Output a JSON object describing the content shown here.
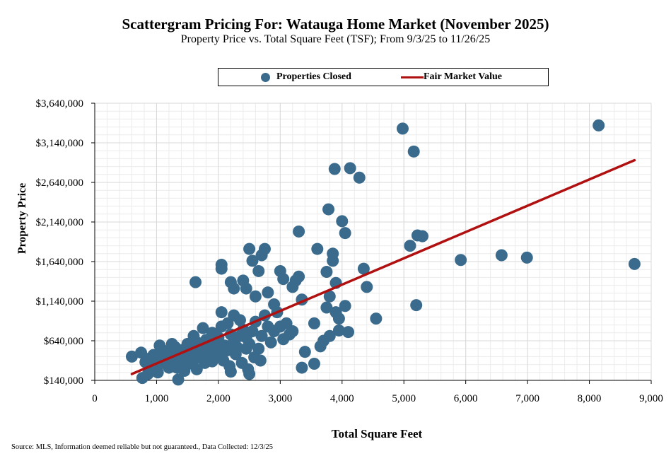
{
  "chart_data": {
    "type": "scatter",
    "title": "Scattergram Pricing For: Watauga Home Market (November 2025)",
    "subtitle": "Property Price vs. Total Square Feet (TSF); From 9/3/25 to 11/26/25",
    "xlabel": "Total Square Feet",
    "ylabel": "Property Price",
    "xlim": [
      0,
      9000
    ],
    "ylim": [
      140000,
      3640000
    ],
    "x_ticks": [
      0,
      1000,
      2000,
      3000,
      4000,
      5000,
      6000,
      7000,
      8000,
      9000
    ],
    "x_tick_labels": [
      "0",
      "1,000",
      "2,000",
      "3,000",
      "4,000",
      "5,000",
      "6,000",
      "7,000",
      "8,000",
      "9,000"
    ],
    "y_ticks": [
      140000,
      640000,
      1140000,
      1640000,
      2140000,
      2640000,
      3140000,
      3640000
    ],
    "y_tick_labels": [
      "$140,000",
      "$640,000",
      "$1,140,000",
      "$1,640,000",
      "$2,140,000",
      "$2,640,000",
      "$3,140,000",
      "$3,640,000"
    ],
    "grid": true,
    "legend_position": "top-center",
    "colors": {
      "points": "#3a6a8c",
      "trend": "#b01010",
      "grid": "#d9d9d9"
    },
    "series": [
      {
        "name": "Properties Closed",
        "type": "scatter",
        "points": [
          [
            600,
            440000
          ],
          [
            750,
            490000
          ],
          [
            820,
            370000
          ],
          [
            900,
            420000
          ],
          [
            950,
            460000
          ],
          [
            1000,
            400000
          ],
          [
            1050,
            580000
          ],
          [
            1100,
            500000
          ],
          [
            1150,
            460000
          ],
          [
            1200,
            520000
          ],
          [
            1250,
            420000
          ],
          [
            1300,
            560000
          ],
          [
            1350,
            480000
          ],
          [
            1400,
            520000
          ],
          [
            1450,
            450000
          ],
          [
            1500,
            600000
          ],
          [
            1550,
            540000
          ],
          [
            1600,
            700000
          ],
          [
            1650,
            620000
          ],
          [
            1700,
            560000
          ],
          [
            1750,
            800000
          ],
          [
            1800,
            650000
          ],
          [
            1850,
            520000
          ],
          [
            1900,
            740000
          ],
          [
            1950,
            600000
          ],
          [
            2000,
            680000
          ],
          [
            2050,
            1000000
          ],
          [
            2100,
            580000
          ],
          [
            2150,
            860000
          ],
          [
            2200,
            720000
          ],
          [
            2250,
            960000
          ],
          [
            2300,
            560000
          ],
          [
            2350,
            900000
          ],
          [
            2400,
            780000
          ],
          [
            2450,
            680000
          ],
          [
            2500,
            600000
          ],
          [
            2550,
            760000
          ],
          [
            2600,
            880000
          ],
          [
            2650,
            540000
          ],
          [
            2700,
            700000
          ],
          [
            2750,
            960000
          ],
          [
            2800,
            820000
          ],
          [
            2850,
            620000
          ],
          [
            2900,
            760000
          ],
          [
            2950,
            1000000
          ],
          [
            3000,
            820000
          ],
          [
            3050,
            660000
          ],
          [
            3100,
            860000
          ],
          [
            3150,
            720000
          ],
          [
            3200,
            760000
          ],
          [
            950,
            340000
          ],
          [
            1120,
            360000
          ],
          [
            1250,
            600000
          ],
          [
            1330,
            300000
          ],
          [
            1480,
            330000
          ],
          [
            1580,
            390000
          ],
          [
            1680,
            430000
          ],
          [
            1780,
            360000
          ],
          [
            1880,
            420000
          ],
          [
            1980,
            480000
          ],
          [
            2080,
            390000
          ],
          [
            2180,
            320000
          ],
          [
            2280,
            470000
          ],
          [
            2380,
            360000
          ],
          [
            2480,
            280000
          ],
          [
            2580,
            430000
          ],
          [
            2680,
            390000
          ],
          [
            1100,
            440000
          ],
          [
            1350,
            400000
          ],
          [
            1600,
            460000
          ],
          [
            1800,
            480000
          ],
          [
            2000,
            440000
          ],
          [
            2150,
            520000
          ],
          [
            1900,
            380000
          ],
          [
            1700,
            520000
          ],
          [
            2250,
            640000
          ],
          [
            2350,
            700000
          ],
          [
            2050,
            820000
          ],
          [
            2450,
            540000
          ],
          [
            1950,
            540000
          ],
          [
            770,
            170000
          ],
          [
            1350,
            150000
          ],
          [
            860,
            220000
          ],
          [
            1020,
            240000
          ],
          [
            1200,
            300000
          ],
          [
            1450,
            260000
          ],
          [
            1650,
            280000
          ],
          [
            2200,
            250000
          ],
          [
            2500,
            220000
          ],
          [
            3350,
            300000
          ],
          [
            3550,
            350000
          ],
          [
            3400,
            500000
          ],
          [
            3700,
            640000
          ],
          [
            3650,
            570000
          ],
          [
            3900,
            1000000
          ],
          [
            3950,
            920000
          ],
          [
            3800,
            700000
          ],
          [
            4100,
            750000
          ],
          [
            3950,
            770000
          ],
          [
            3750,
            1060000
          ],
          [
            4050,
            1080000
          ],
          [
            3300,
            1450000
          ],
          [
            3350,
            1160000
          ],
          [
            3550,
            860000
          ],
          [
            3000,
            1520000
          ],
          [
            3050,
            1420000
          ],
          [
            3200,
            1320000
          ],
          [
            3250,
            1400000
          ],
          [
            2550,
            1650000
          ],
          [
            2700,
            1720000
          ],
          [
            2750,
            1800000
          ],
          [
            2500,
            1800000
          ],
          [
            2650,
            1520000
          ],
          [
            2400,
            1400000
          ],
          [
            2450,
            1300000
          ],
          [
            2200,
            1380000
          ],
          [
            2250,
            1300000
          ],
          [
            2050,
            1550000
          ],
          [
            2050,
            1600000
          ],
          [
            1630,
            1380000
          ],
          [
            3300,
            2020000
          ],
          [
            3600,
            1800000
          ],
          [
            3800,
            1200000
          ],
          [
            3850,
            1740000
          ],
          [
            3850,
            1650000
          ],
          [
            3900,
            1370000
          ],
          [
            3750,
            1510000
          ],
          [
            4000,
            2150000
          ],
          [
            4050,
            2000000
          ],
          [
            3780,
            2300000
          ],
          [
            4350,
            1550000
          ],
          [
            4400,
            1320000
          ],
          [
            4550,
            920000
          ],
          [
            3880,
            2810000
          ],
          [
            4130,
            2820000
          ],
          [
            4280,
            2700000
          ],
          [
            4980,
            3320000
          ],
          [
            5160,
            3030000
          ],
          [
            5100,
            1840000
          ],
          [
            5220,
            1970000
          ],
          [
            5300,
            1960000
          ],
          [
            5200,
            1090000
          ],
          [
            5920,
            1660000
          ],
          [
            6580,
            1720000
          ],
          [
            6990,
            1690000
          ],
          [
            8150,
            3360000
          ],
          [
            8730,
            1610000
          ],
          [
            2800,
            1250000
          ],
          [
            2600,
            1200000
          ],
          [
            2900,
            1100000
          ]
        ]
      },
      {
        "name": "Fair Market Value",
        "type": "line",
        "points": [
          [
            600,
            220000
          ],
          [
            8730,
            2920000
          ]
        ]
      }
    ]
  },
  "source_note": "Source: MLS, Information deemed reliable but not guaranteed., Data Collected: 12/3/25"
}
